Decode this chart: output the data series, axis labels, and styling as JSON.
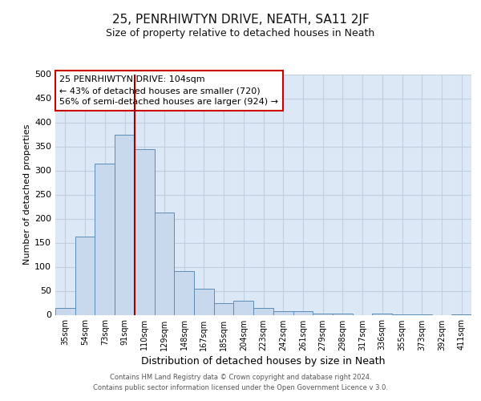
{
  "title": "25, PENRHIWTYN DRIVE, NEATH, SA11 2JF",
  "subtitle": "Size of property relative to detached houses in Neath",
  "xlabel": "Distribution of detached houses by size in Neath",
  "ylabel": "Number of detached properties",
  "bar_labels": [
    "35sqm",
    "54sqm",
    "73sqm",
    "91sqm",
    "110sqm",
    "129sqm",
    "148sqm",
    "167sqm",
    "185sqm",
    "204sqm",
    "223sqm",
    "242sqm",
    "261sqm",
    "279sqm",
    "298sqm",
    "317sqm",
    "336sqm",
    "355sqm",
    "373sqm",
    "392sqm",
    "411sqm"
  ],
  "bar_values": [
    15,
    163,
    315,
    375,
    345,
    213,
    91,
    55,
    25,
    29,
    14,
    7,
    8,
    3,
    3,
    0,
    3,
    1,
    1,
    0,
    1
  ],
  "bar_color": "#c9d9ed",
  "bar_edge_color": "#5b8db8",
  "vline_index": 4,
  "vline_color": "#990000",
  "ylim": [
    0,
    500
  ],
  "yticks": [
    0,
    50,
    100,
    150,
    200,
    250,
    300,
    350,
    400,
    450,
    500
  ],
  "annotation_title": "25 PENRHIWTYN DRIVE: 104sqm",
  "annotation_line1": "← 43% of detached houses are smaller (720)",
  "annotation_line2": "56% of semi-detached houses are larger (924) →",
  "annotation_box_facecolor": "#ffffff",
  "annotation_box_edgecolor": "#cc0000",
  "footer_line1": "Contains HM Land Registry data © Crown copyright and database right 2024.",
  "footer_line2": "Contains public sector information licensed under the Open Government Licence v 3.0.",
  "fig_bg_color": "#ffffff",
  "plot_bg_color": "#dce8f5",
  "grid_color": "#c0cfe0",
  "title_fontsize": 11,
  "subtitle_fontsize": 9
}
